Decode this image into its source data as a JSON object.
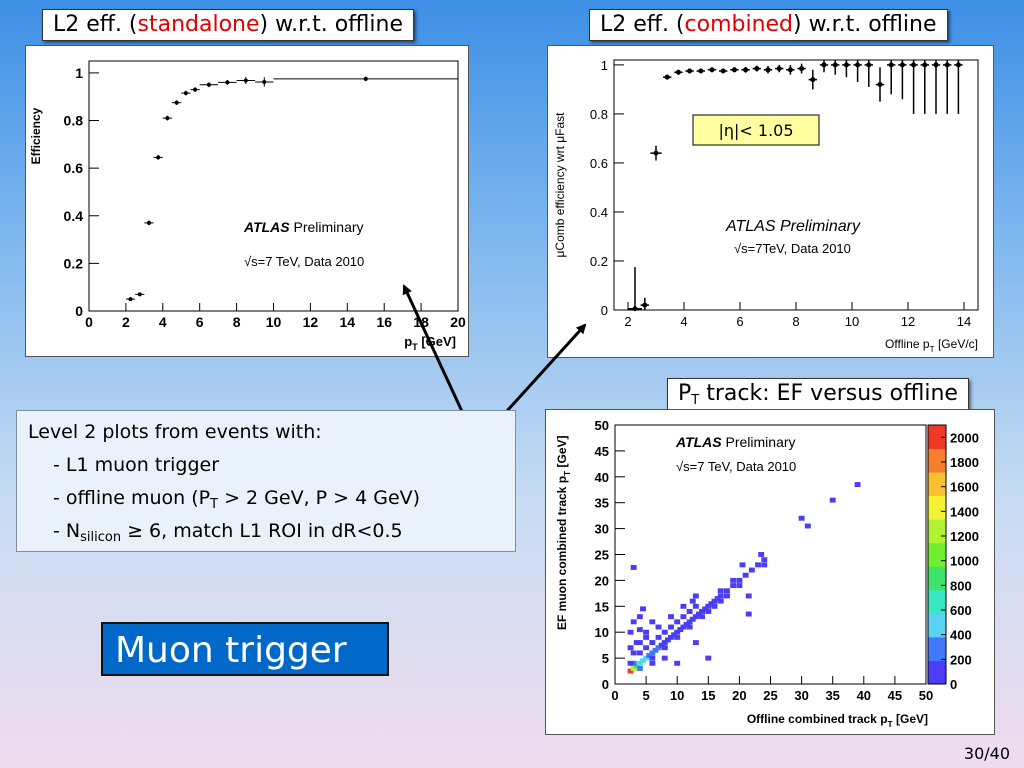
{
  "captions": {
    "standalone": {
      "pre": "L2 eff. (",
      "highlight": "standalone",
      "post": ") w.r.t. offline"
    },
    "combined": {
      "pre": "L2 eff. (",
      "highlight": "combined",
      "post": ") w.r.t. offline"
    },
    "track": {
      "p": "P",
      "sub": "T",
      "rest": " track: EF versus offline"
    }
  },
  "textbox": {
    "line1": "Level 2 plots from events with:",
    "line2": "- L1 muon trigger",
    "line3_a": "- offline muon (P",
    "line3_sub": "T",
    "line3_b": " > 2 GeV, P > 4 GeV)",
    "line4_a": "- N",
    "line4_sub": "silicon",
    "line4_b": " ≥ 6, match L1 ROI  in dR<0.5"
  },
  "title_box": "Muon trigger",
  "page_number": "30/40",
  "colors": {
    "caption_highlight": "#e00000",
    "title_box_bg": "#0068c8"
  },
  "chart_data": [
    {
      "type": "scatter",
      "id": "standalone",
      "ylabel": "Efficiency",
      "xlabel_main": "p",
      "xlabel_sub": "T",
      "xlabel_unit": " [GeV]",
      "xlim": [
        0,
        20
      ],
      "ylim": [
        0,
        1.05
      ],
      "xticks": [
        0,
        2,
        4,
        6,
        8,
        10,
        12,
        14,
        16,
        18,
        20
      ],
      "yticks": [
        0,
        0.2,
        0.4,
        0.6,
        0.8,
        1
      ],
      "ytick_labels": [
        "0",
        "0.2",
        "0.4",
        "0.6",
        "0.8",
        "1"
      ],
      "atlas": "ATLAS",
      "preliminary": "Preliminary",
      "energy_line": "√s=7 TeV, Data 2010",
      "points": [
        {
          "x": 2.25,
          "y": 0.05,
          "ex": 0.25,
          "ey": 0.005
        },
        {
          "x": 2.75,
          "y": 0.07,
          "ex": 0.25,
          "ey": 0.005
        },
        {
          "x": 3.25,
          "y": 0.37,
          "ex": 0.25,
          "ey": 0.01
        },
        {
          "x": 3.75,
          "y": 0.645,
          "ex": 0.25,
          "ey": 0.01
        },
        {
          "x": 4.25,
          "y": 0.81,
          "ex": 0.25,
          "ey": 0.01
        },
        {
          "x": 4.75,
          "y": 0.875,
          "ex": 0.25,
          "ey": 0.01
        },
        {
          "x": 5.25,
          "y": 0.915,
          "ex": 0.25,
          "ey": 0.01
        },
        {
          "x": 5.75,
          "y": 0.93,
          "ex": 0.25,
          "ey": 0.01
        },
        {
          "x": 6.5,
          "y": 0.95,
          "ex": 0.5,
          "ey": 0.01
        },
        {
          "x": 7.5,
          "y": 0.96,
          "ex": 0.5,
          "ey": 0.01
        },
        {
          "x": 8.5,
          "y": 0.968,
          "ex": 0.5,
          "ey": 0.015
        },
        {
          "x": 9.5,
          "y": 0.962,
          "ex": 0.5,
          "ey": 0.02
        },
        {
          "x": 15,
          "y": 0.975,
          "ex": 5,
          "ey": 0.01
        }
      ]
    },
    {
      "type": "scatter",
      "id": "combined",
      "ylabel": "μComb efficiency wrt μFast",
      "xlabel_main": "Offline p",
      "xlabel_sub": "T",
      "xlabel_unit": " [GeV/c]",
      "xlim": [
        1.5,
        14.5
      ],
      "ylim": [
        0,
        1.02
      ],
      "xticks": [
        2,
        4,
        6,
        8,
        10,
        12,
        14
      ],
      "yticks": [
        0,
        0.2,
        0.4,
        0.6,
        0.8,
        1
      ],
      "ytick_labels": [
        "0",
        "0.2",
        "0.4",
        "0.6",
        "0.8",
        "1"
      ],
      "annotation": "|η|< 1.05",
      "atlas": "ATLAS Preliminary",
      "energy_line": "√s=7TeV, Data 2010",
      "points": [
        {
          "x": 2.25,
          "y": 0.005,
          "ex": 0.25,
          "ey": 0.17
        },
        {
          "x": 2.6,
          "y": 0.02,
          "ex": 0.15,
          "ey": 0.03
        },
        {
          "x": 3.0,
          "y": 0.64,
          "ex": 0.2,
          "ey": 0.03
        },
        {
          "x": 3.4,
          "y": 0.95,
          "ex": 0.15,
          "ey": 0.01
        },
        {
          "x": 3.8,
          "y": 0.97,
          "ex": 0.15,
          "ey": 0.01
        },
        {
          "x": 4.2,
          "y": 0.975,
          "ex": 0.15,
          "ey": 0.01
        },
        {
          "x": 4.6,
          "y": 0.975,
          "ex": 0.15,
          "ey": 0.01
        },
        {
          "x": 5.0,
          "y": 0.98,
          "ex": 0.15,
          "ey": 0.01
        },
        {
          "x": 5.4,
          "y": 0.975,
          "ex": 0.15,
          "ey": 0.01
        },
        {
          "x": 5.8,
          "y": 0.98,
          "ex": 0.15,
          "ey": 0.01
        },
        {
          "x": 6.2,
          "y": 0.98,
          "ex": 0.15,
          "ey": 0.012
        },
        {
          "x": 6.6,
          "y": 0.985,
          "ex": 0.15,
          "ey": 0.012
        },
        {
          "x": 7.0,
          "y": 0.98,
          "ex": 0.15,
          "ey": 0.015
        },
        {
          "x": 7.4,
          "y": 0.985,
          "ex": 0.15,
          "ey": 0.015
        },
        {
          "x": 7.8,
          "y": 0.98,
          "ex": 0.15,
          "ey": 0.02
        },
        {
          "x": 8.2,
          "y": 0.985,
          "ex": 0.15,
          "ey": 0.02
        },
        {
          "x": 8.6,
          "y": 0.94,
          "ex": 0.15,
          "ey": 0.04
        },
        {
          "x": 9.0,
          "y": 1.0,
          "ex": 0.15,
          "ey": 0.03
        },
        {
          "x": 9.4,
          "y": 1.0,
          "ex": 0.15,
          "ey": 0.04
        },
        {
          "x": 9.8,
          "y": 1.0,
          "ex": 0.15,
          "ey": 0.05
        },
        {
          "x": 10.2,
          "y": 1.0,
          "ex": 0.15,
          "ey": 0.07
        },
        {
          "x": 10.6,
          "y": 1.0,
          "ex": 0.15,
          "ey": 0.09
        },
        {
          "x": 11.0,
          "y": 0.92,
          "ex": 0.15,
          "ey": 0.07
        },
        {
          "x": 11.4,
          "y": 1.0,
          "ex": 0.15,
          "ey": 0.12
        },
        {
          "x": 11.8,
          "y": 1.0,
          "ex": 0.15,
          "ey": 0.14
        },
        {
          "x": 12.2,
          "y": 1.0,
          "ex": 0.15,
          "ey": 0.2
        },
        {
          "x": 12.6,
          "y": 1.0,
          "ex": 0.15,
          "ey": 0.2
        },
        {
          "x": 13.0,
          "y": 1.0,
          "ex": 0.15,
          "ey": 0.2
        },
        {
          "x": 13.4,
          "y": 1.0,
          "ex": 0.15,
          "ey": 0.2
        },
        {
          "x": 13.8,
          "y": 1.0,
          "ex": 0.15,
          "ey": 0.2
        }
      ]
    },
    {
      "type": "heatmap",
      "id": "ef_vs_offline",
      "ylabel_main": "EF muon combined track p",
      "ylabel_sub": "T",
      "ylabel_unit": " [GeV]",
      "xlabel_main": "Offline combined track p",
      "xlabel_sub": "T",
      "xlabel_unit": " [GeV]",
      "xlim": [
        0,
        50
      ],
      "ylim": [
        0,
        50
      ],
      "xticks": [
        0,
        5,
        10,
        15,
        20,
        25,
        30,
        35,
        40,
        45,
        50
      ],
      "yticks": [
        0,
        5,
        10,
        15,
        20,
        25,
        30,
        35,
        40,
        45,
        50
      ],
      "zlim": [
        0,
        2100
      ],
      "zticks": [
        0,
        200,
        400,
        600,
        800,
        1000,
        1200,
        1400,
        1600,
        1800,
        2000
      ],
      "atlas": "ATLAS",
      "preliminary": "Preliminary",
      "energy_line": "√s=7 TeV, Data 2010",
      "cells": [
        [
          2.5,
          2.5,
          2000
        ],
        [
          3,
          3,
          1200
        ],
        [
          3.5,
          3.5,
          900
        ],
        [
          4,
          4,
          700
        ],
        [
          4.5,
          4.5,
          500
        ],
        [
          5,
          5,
          400
        ],
        [
          3,
          4,
          300
        ],
        [
          4,
          3,
          300
        ],
        [
          5.5,
          5.5,
          300
        ],
        [
          6,
          6,
          260
        ],
        [
          6.5,
          6.5,
          220
        ],
        [
          7,
          7,
          200
        ],
        [
          7.5,
          7.5,
          180
        ],
        [
          8,
          8,
          160
        ],
        [
          8.5,
          8.5,
          150
        ],
        [
          9,
          9,
          140
        ],
        [
          9.5,
          9.5,
          120
        ],
        [
          10,
          10,
          110
        ],
        [
          10.5,
          10.5,
          100
        ],
        [
          11,
          11,
          100
        ],
        [
          11.5,
          11.5,
          90
        ],
        [
          12,
          12,
          90
        ],
        [
          12.5,
          12.5,
          80
        ],
        [
          13,
          13,
          80
        ],
        [
          13.5,
          13.5,
          70
        ],
        [
          14,
          14,
          70
        ],
        [
          14.5,
          14.5,
          60
        ],
        [
          15,
          15,
          60
        ],
        [
          15.5,
          15.5,
          50
        ],
        [
          16,
          16,
          50
        ],
        [
          16.5,
          16.5,
          40
        ],
        [
          17,
          17,
          40
        ],
        [
          18,
          18,
          30
        ],
        [
          19,
          19,
          30
        ],
        [
          20,
          20,
          25
        ],
        [
          21,
          21,
          20
        ],
        [
          22,
          22,
          20
        ],
        [
          23,
          23,
          15
        ],
        [
          24,
          24,
          10
        ],
        [
          2.5,
          4,
          150
        ],
        [
          4,
          6,
          100
        ],
        [
          5,
          7,
          90
        ],
        [
          6,
          8,
          80
        ],
        [
          7,
          9,
          80
        ],
        [
          8,
          10,
          70
        ],
        [
          9,
          11,
          60
        ],
        [
          10,
          12,
          50
        ],
        [
          11,
          13,
          50
        ],
        [
          12,
          14,
          40
        ],
        [
          13,
          15,
          40
        ],
        [
          6,
          5,
          100
        ],
        [
          8,
          7,
          80
        ],
        [
          10,
          9,
          60
        ],
        [
          12,
          11,
          50
        ],
        [
          14,
          13,
          40
        ],
        [
          16,
          15,
          30
        ],
        [
          18,
          17,
          25
        ],
        [
          3,
          6,
          60
        ],
        [
          4,
          8,
          50
        ],
        [
          5,
          9,
          40
        ],
        [
          7,
          11,
          40
        ],
        [
          2.5,
          7,
          40
        ],
        [
          3.5,
          8,
          30
        ],
        [
          6,
          4,
          60
        ],
        [
          8,
          5,
          40
        ],
        [
          5,
          10,
          30
        ],
        [
          6,
          12,
          25
        ],
        [
          9,
          13,
          30
        ],
        [
          11,
          15,
          25
        ],
        [
          13,
          17,
          20
        ],
        [
          15,
          14,
          20
        ],
        [
          17,
          16,
          20
        ],
        [
          20,
          19,
          15
        ],
        [
          3,
          22.5,
          10
        ],
        [
          4,
          10.5,
          15
        ],
        [
          4.5,
          14.5,
          10
        ],
        [
          12.5,
          16,
          15
        ],
        [
          17,
          18,
          15
        ],
        [
          19,
          20,
          12
        ],
        [
          20.5,
          23,
          10
        ],
        [
          21.5,
          17,
          10
        ],
        [
          23.5,
          25,
          10
        ],
        [
          24,
          23,
          10
        ],
        [
          21.5,
          13.5,
          10
        ],
        [
          13,
          8,
          12
        ],
        [
          15,
          5,
          10
        ],
        [
          10,
          4,
          10
        ],
        [
          30,
          32,
          10
        ],
        [
          31,
          30.5,
          10
        ],
        [
          35,
          35.5,
          10
        ],
        [
          39,
          38.5,
          10
        ],
        [
          2.5,
          10,
          15
        ],
        [
          3,
          12,
          10
        ],
        [
          4,
          13,
          10
        ]
      ]
    }
  ]
}
